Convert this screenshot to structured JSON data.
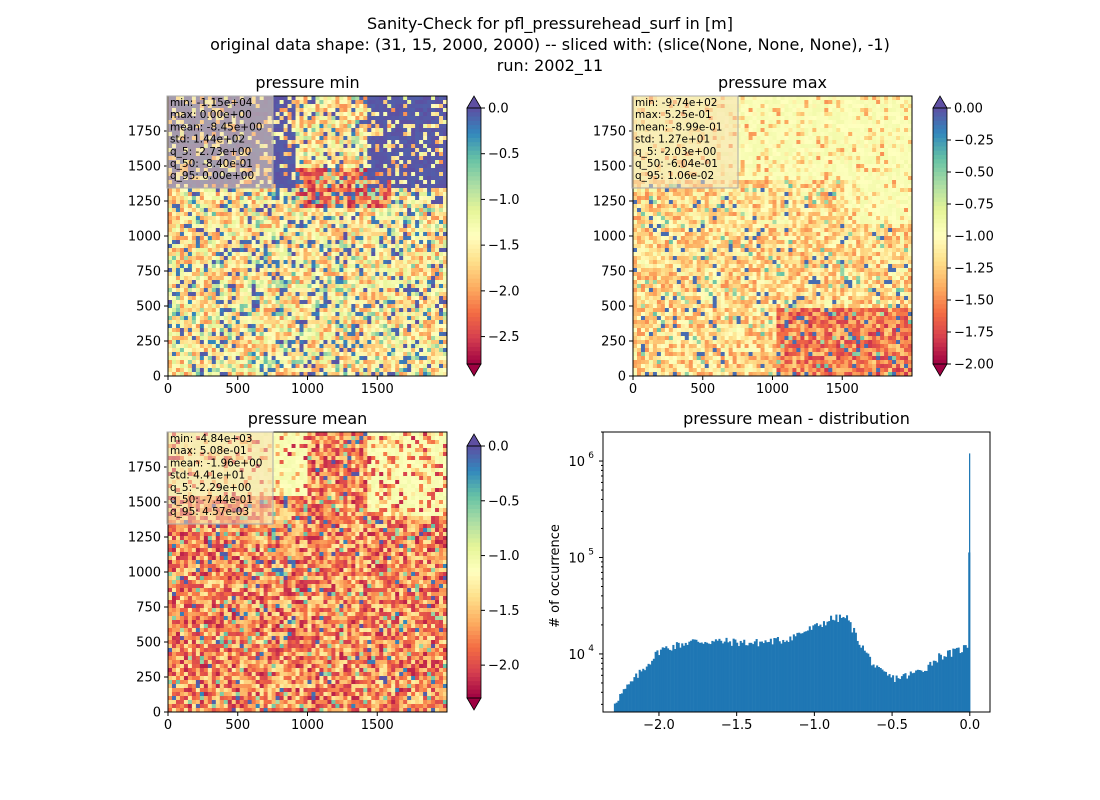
{
  "suptitle": [
    "Sanity-Check for pfl_pressurehead_surf in [m]",
    "original data shape: (31, 15, 2000, 2000) -- sliced with: (slice(None, None, None), -1)",
    "run: 2002_11"
  ],
  "chart_data": [
    {
      "type": "heatmap",
      "title": "pressure min",
      "x_ticks": [
        "0",
        "500",
        "1000",
        "1500"
      ],
      "y_ticks": [
        "0",
        "250",
        "500",
        "750",
        "1000",
        "1250",
        "1500",
        "1750"
      ],
      "xlim": [
        0,
        2000
      ],
      "ylim": [
        0,
        2000
      ],
      "colormap": "Spectral",
      "colorbar": {
        "range": [
          -2.8,
          0.0
        ],
        "ticks": [
          "0.0",
          "−0.5",
          "−1.0",
          "−1.5",
          "−2.0",
          "−2.5"
        ],
        "extend": "both"
      },
      "stats": [
        "min: -1.15e+04",
        "max: 0.00e+00",
        "mean: -8.45e+00",
        "std: 1.44e+02",
        "q_5: -2.73e+00",
        "q_50: -8.40e-01",
        "q_95: 0.00e+00"
      ]
    },
    {
      "type": "heatmap",
      "title": "pressure max",
      "x_ticks": [
        "0",
        "500",
        "1000",
        "1500"
      ],
      "y_ticks": [
        "0",
        "250",
        "500",
        "750",
        "1000",
        "1250",
        "1500",
        "1750"
      ],
      "xlim": [
        0,
        2000
      ],
      "ylim": [
        0,
        2000
      ],
      "colormap": "Spectral",
      "colorbar": {
        "range": [
          -2.0,
          0.0
        ],
        "ticks": [
          "0.00",
          "−0.25",
          "−0.50",
          "−0.75",
          "−1.00",
          "−1.25",
          "−1.50",
          "−1.75",
          "−2.00"
        ],
        "extend": "both"
      },
      "stats": [
        "min: -9.74e+02",
        "max: 5.25e-01",
        "mean: -8.99e-01",
        "std: 1.27e+01",
        "q_5: -2.03e+00",
        "q_50: -6.04e-01",
        "q_95: 1.06e-02"
      ]
    },
    {
      "type": "heatmap",
      "title": "pressure mean",
      "x_ticks": [
        "0",
        "500",
        "1000",
        "1500"
      ],
      "y_ticks": [
        "0",
        "250",
        "500",
        "750",
        "1000",
        "1250",
        "1500",
        "1750"
      ],
      "xlim": [
        0,
        2000
      ],
      "ylim": [
        0,
        2000
      ],
      "colormap": "Spectral",
      "colorbar": {
        "range": [
          -2.3,
          0.0
        ],
        "ticks": [
          "0.0",
          "−0.5",
          "−1.0",
          "−1.5",
          "−2.0"
        ],
        "extend": "both"
      },
      "stats": [
        "min: -4.84e+03",
        "max: 5.08e-01",
        "mean: -1.96e+00",
        "std: 4.41e+01",
        "q_5: -2.29e+00",
        "q_50: -7.44e-01",
        "q_95: 4.57e-03"
      ]
    },
    {
      "type": "bar",
      "title": "pressure mean - distribution",
      "ylabel": "# of occurrence",
      "xlabel": "",
      "yscale": "log",
      "xlim": [
        -2.36,
        0.13
      ],
      "ylim": [
        2500,
        2000000
      ],
      "x_ticks": [
        -2.0,
        -1.5,
        -1.0,
        -0.5,
        0.0
      ],
      "x_tick_labels": [
        "−2.0",
        "−1.5",
        "−1.0",
        "−0.5",
        "0.0"
      ],
      "y_ticks": [
        10000,
        100000,
        1000000
      ],
      "y_tick_labels": [
        "10",
        "10",
        "10"
      ],
      "y_tick_exponents": [
        "4",
        "5",
        "6"
      ],
      "bar_color": "#1f77b4",
      "x": [
        -2.29,
        -2.0,
        -1.8,
        -1.6,
        -1.4,
        -1.2,
        -1.0,
        -0.9,
        -0.8,
        -0.7,
        -0.6,
        -0.5,
        -0.4,
        -0.3,
        -0.2,
        -0.1,
        -0.02,
        0.0
      ],
      "values": [
        3200,
        11000,
        13500,
        13500,
        13000,
        14000,
        19000,
        23000,
        24000,
        12000,
        6800,
        5600,
        6000,
        7000,
        9500,
        10500,
        12000,
        1200000
      ]
    }
  ]
}
